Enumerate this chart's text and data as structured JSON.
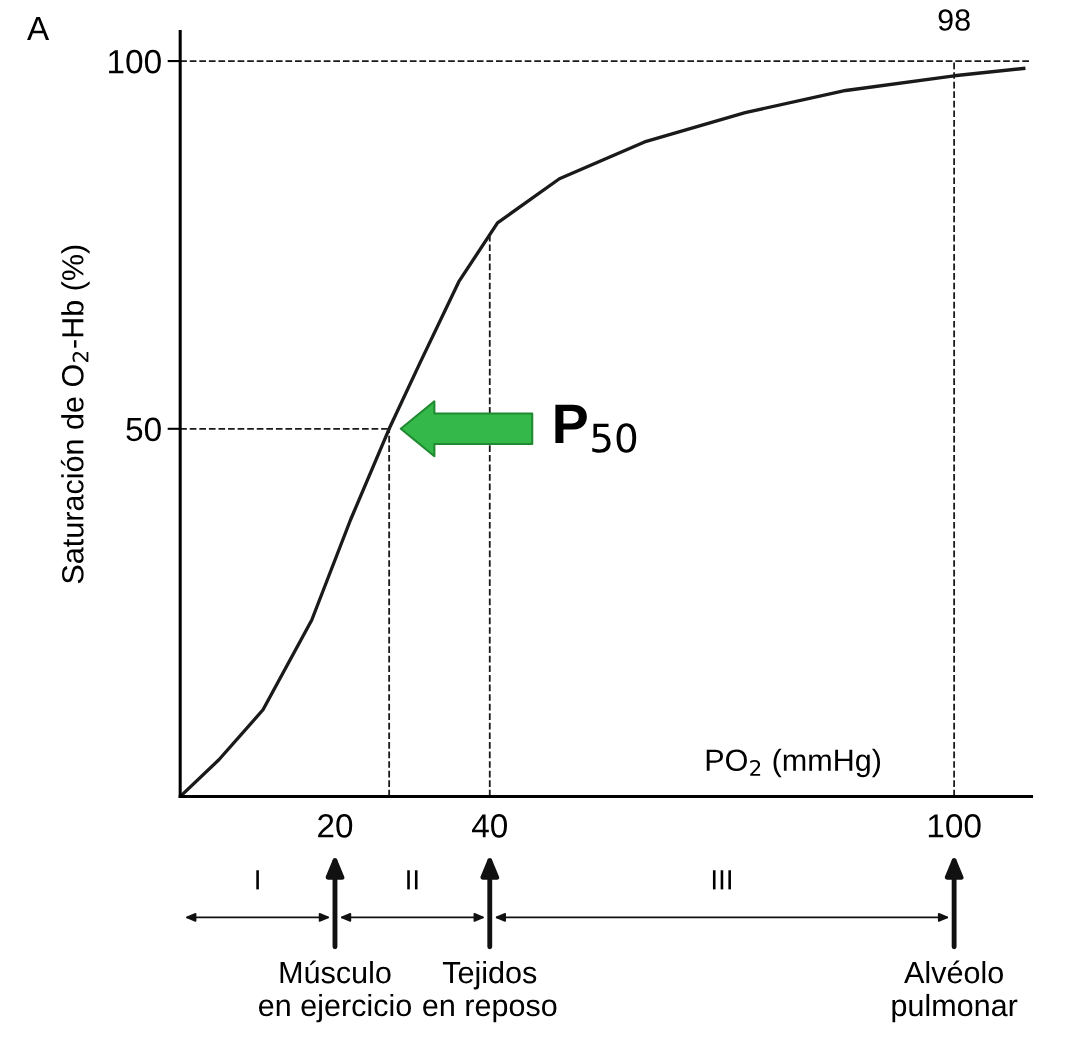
{
  "chart_data": {
    "type": "line",
    "xlabel": "PO$_{2}$ (mmHg)",
    "ylabel": "Saturación de O$_{2}$-Hb (%)",
    "series": [
      {
        "color": "#1a1a1a",
        "x": [
          0,
          5,
          10.7,
          17,
          22,
          27,
          31,
          36,
          41,
          49,
          60,
          73,
          86,
          100,
          109
        ],
        "values": [
          0,
          5,
          11.8,
          24,
          37.6,
          50,
          59,
          70,
          78,
          84,
          89,
          93,
          96,
          98,
          99
        ]
      }
    ],
    "xlim": [
      0,
      110
    ],
    "ylim": [
      0,
      104
    ],
    "xticks": [
      20,
      40,
      100
    ],
    "yticks": [
      50,
      100
    ],
    "line_style": "solid",
    "ref_lines": [
      {
        "axis": "y",
        "value": 100,
        "line_style": "dashed",
        "color": "#1a1a1a"
      },
      {
        "axis": "y",
        "value": 50,
        "line_style": "dashed",
        "color": "#1a1a1a"
      },
      {
        "axis": "x",
        "value": 27,
        "line_style": "dashed",
        "color": "#1a1a1a"
      },
      {
        "axis": "x",
        "value": 40,
        "line_style": "dashed",
        "color": "#1a1a1a"
      },
      {
        "axis": "x",
        "value": 100,
        "line_style": "dashed",
        "color": "#1a1a1a"
      }
    ],
    "annotations": [
      "A",
      {
        "text": "98",
        "x": 100,
        "y": 98
      },
      {
        "text": "P$_{50}$",
        "x": 27,
        "y": 50
      },
      "Músculo\nen ejercicio",
      "Tejidos\nen reposo",
      "Alvéolo\npulmonar",
      "I",
      "II",
      "III"
    ]
  }
}
